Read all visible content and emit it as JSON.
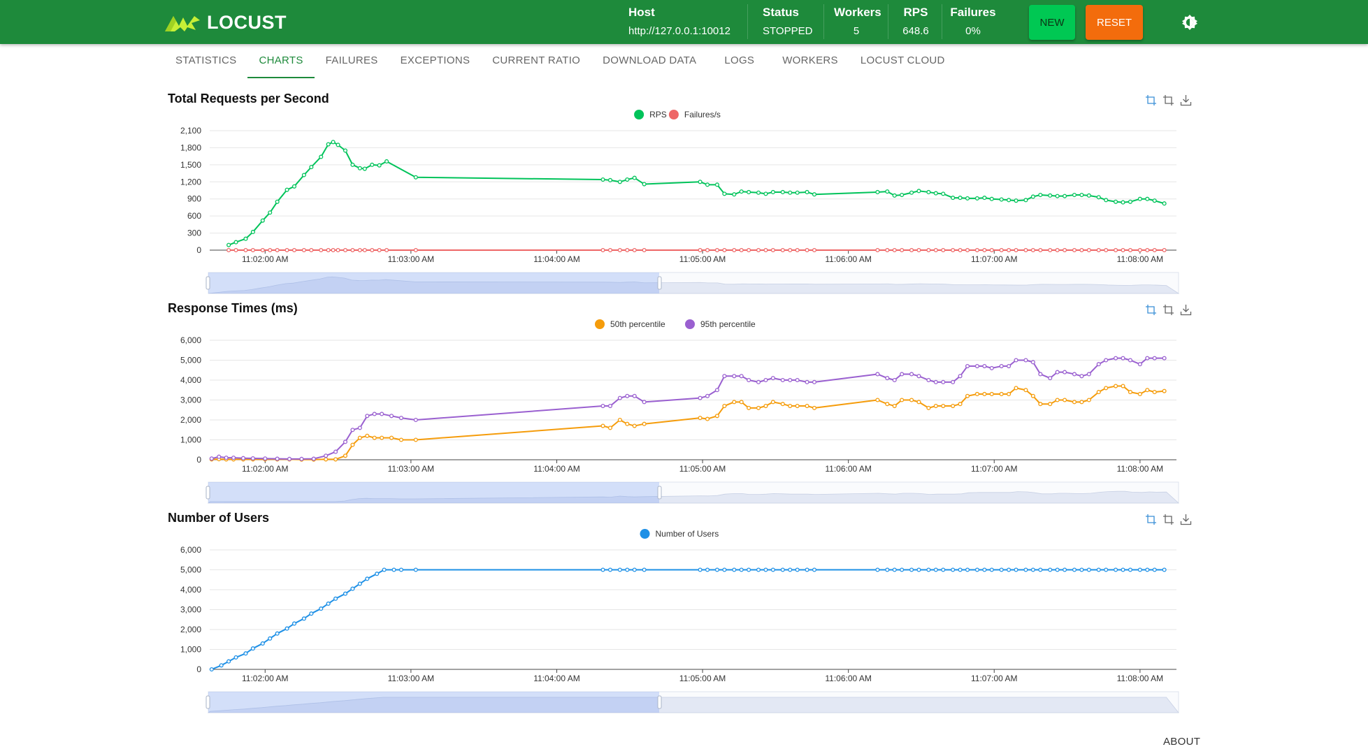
{
  "header": {
    "logo_text": "LOCUST",
    "host_label": "Host",
    "host_value": "http://127.0.0.1:10012",
    "status_label": "Status",
    "status_value": "STOPPED",
    "workers_label": "Workers",
    "workers_value": "5",
    "rps_label": "RPS",
    "rps_value": "648.6",
    "failures_label": "Failures",
    "failures_value": "0%",
    "new_label": "NEW",
    "reset_label": "RESET",
    "theme_icon": "brightness-icon",
    "colors": {
      "bar": "#1e8a3b",
      "new": "#00c853",
      "reset": "#f36c0c"
    }
  },
  "tabs": [
    {
      "label": "STATISTICS"
    },
    {
      "label": "CHARTS",
      "active": true
    },
    {
      "label": "FAILURES"
    },
    {
      "label": "EXCEPTIONS"
    },
    {
      "label": "CURRENT RATIO"
    },
    {
      "label": "DOWNLOAD DATA"
    },
    {
      "label": "LOGS"
    },
    {
      "label": "WORKERS"
    },
    {
      "label": "LOCUST CLOUD"
    }
  ],
  "footer": {
    "about_label": "ABOUT"
  },
  "chart_data": [
    {
      "type": "line",
      "title": "Total Requests per Second",
      "x": [
        "11:01:45 AM",
        "11:01:48 AM",
        "11:01:52 AM",
        "11:01:55 AM",
        "11:01:59 AM",
        "11:02:02 AM",
        "11:02:05 AM",
        "11:02:09 AM",
        "11:02:12 AM",
        "11:02:16 AM",
        "11:02:19 AM",
        "11:02:23 AM",
        "11:02:26 AM",
        "11:02:28 AM",
        "11:02:30 AM",
        "11:02:33 AM",
        "11:02:36 AM",
        "11:02:39 AM",
        "11:02:41 AM",
        "11:02:44 AM",
        "11:02:47 AM",
        "11:02:50 AM",
        "11:03:02 AM",
        "11:04:19 AM",
        "11:04:22 AM",
        "11:04:26 AM",
        "11:04:29 AM",
        "11:04:32 AM",
        "11:04:36 AM",
        "11:04:59 AM",
        "11:05:02 AM",
        "11:05:06 AM",
        "11:05:09 AM",
        "11:05:13 AM",
        "11:05:16 AM",
        "11:05:19 AM",
        "11:05:23 AM",
        "11:05:26 AM",
        "11:05:29 AM",
        "11:05:33 AM",
        "11:05:36 AM",
        "11:05:39 AM",
        "11:05:43 AM",
        "11:05:46 AM",
        "11:06:12 AM",
        "11:06:16 AM",
        "11:06:19 AM",
        "11:06:22 AM",
        "11:06:26 AM",
        "11:06:29 AM",
        "11:06:33 AM",
        "11:06:36 AM",
        "11:06:39 AM",
        "11:06:43 AM",
        "11:06:46 AM",
        "11:06:49 AM",
        "11:06:53 AM",
        "11:06:56 AM",
        "11:06:59 AM",
        "11:07:03 AM",
        "11:07:06 AM",
        "11:07:09 AM",
        "11:07:13 AM",
        "11:07:16 AM",
        "11:07:19 AM",
        "11:07:23 AM",
        "11:07:26 AM",
        "11:07:29 AM",
        "11:07:33 AM",
        "11:07:36 AM",
        "11:07:39 AM",
        "11:07:43 AM",
        "11:07:46 AM",
        "11:07:50 AM",
        "11:07:53 AM",
        "11:07:56 AM",
        "11:08:00 AM",
        "11:08:03 AM",
        "11:08:06 AM",
        "11:08:10 AM"
      ],
      "x_range_minutes": [
        1.62,
        8.25
      ],
      "series": [
        {
          "name": "RPS",
          "color": "#00c35a",
          "values": [
            90,
            140,
            200,
            320,
            520,
            660,
            850,
            1060,
            1120,
            1320,
            1460,
            1640,
            1860,
            1900,
            1850,
            1750,
            1500,
            1440,
            1430,
            1500,
            1490,
            1560,
            1280,
            1240,
            1230,
            1200,
            1240,
            1270,
            1160,
            1200,
            1150,
            1150,
            990,
            980,
            1030,
            1020,
            1010,
            990,
            1020,
            1020,
            1010,
            1010,
            1020,
            980,
            1020,
            1030,
            960,
            970,
            1010,
            1040,
            1020,
            1000,
            990,
            920,
            920,
            910,
            910,
            920,
            900,
            890,
            880,
            870,
            880,
            940,
            970,
            960,
            950,
            950,
            970,
            970,
            960,
            930,
            880,
            850,
            840,
            850,
            900,
            900,
            870,
            820
          ]
        },
        {
          "name": "Failures/s",
          "color": "#ee6666",
          "values": [
            0,
            0,
            0,
            0,
            0,
            0,
            0,
            0,
            0,
            0,
            0,
            0,
            0,
            0,
            0,
            0,
            0,
            0,
            0,
            0,
            0,
            0,
            0,
            0,
            0,
            0,
            0,
            0,
            0,
            0,
            0,
            0,
            0,
            0,
            0,
            0,
            0,
            0,
            0,
            0,
            0,
            0,
            0,
            0,
            0,
            0,
            0,
            0,
            0,
            0,
            0,
            0,
            0,
            0,
            0,
            0,
            0,
            0,
            0,
            0,
            0,
            0,
            0,
            0,
            0,
            0,
            0,
            0,
            0,
            0,
            0,
            0,
            0,
            0,
            0,
            0,
            0,
            0,
            0,
            0
          ]
        }
      ],
      "ylim": [
        0,
        2100
      ],
      "yticks": [
        "0",
        "300",
        "600",
        "900",
        "1,200",
        "1,500",
        "1,800",
        "2,100"
      ],
      "xticks": [
        "11:02:00 AM",
        "11:03:00 AM",
        "11:04:00 AM",
        "11:05:00 AM",
        "11:06:00 AM",
        "11:07:00 AM",
        "11:08:00 AM"
      ],
      "legend": "top-center",
      "grid": true,
      "datazoom": true
    },
    {
      "type": "line",
      "title": "Response Times (ms)",
      "x": [
        "11:01:38 AM",
        "11:01:41 AM",
        "11:01:44 AM",
        "11:01:47 AM",
        "11:01:51 AM",
        "11:01:55 AM",
        "11:02:00 AM",
        "11:02:05 AM",
        "11:02:10 AM",
        "11:02:15 AM",
        "11:02:20 AM",
        "11:02:25 AM",
        "11:02:29 AM",
        "11:02:33 AM",
        "11:02:36 AM",
        "11:02:39 AM",
        "11:02:42 AM",
        "11:02:45 AM",
        "11:02:48 AM",
        "11:02:52 AM",
        "11:02:56 AM",
        "11:03:02 AM",
        "11:04:19 AM",
        "11:04:22 AM",
        "11:04:26 AM",
        "11:04:29 AM",
        "11:04:32 AM",
        "11:04:36 AM",
        "11:04:59 AM",
        "11:05:02 AM",
        "11:05:06 AM",
        "11:05:09 AM",
        "11:05:13 AM",
        "11:05:16 AM",
        "11:05:19 AM",
        "11:05:23 AM",
        "11:05:26 AM",
        "11:05:29 AM",
        "11:05:33 AM",
        "11:05:36 AM",
        "11:05:39 AM",
        "11:05:43 AM",
        "11:05:46 AM",
        "11:06:12 AM",
        "11:06:16 AM",
        "11:06:19 AM",
        "11:06:22 AM",
        "11:06:26 AM",
        "11:06:29 AM",
        "11:06:33 AM",
        "11:06:36 AM",
        "11:06:39 AM",
        "11:06:43 AM",
        "11:06:46 AM",
        "11:06:49 AM",
        "11:06:53 AM",
        "11:06:56 AM",
        "11:06:59 AM",
        "11:07:03 AM",
        "11:07:06 AM",
        "11:07:09 AM",
        "11:07:13 AM",
        "11:07:16 AM",
        "11:07:19 AM",
        "11:07:23 AM",
        "11:07:26 AM",
        "11:07:29 AM",
        "11:07:33 AM",
        "11:07:36 AM",
        "11:07:39 AM",
        "11:07:43 AM",
        "11:07:46 AM",
        "11:07:50 AM",
        "11:07:53 AM",
        "11:07:56 AM",
        "11:08:00 AM",
        "11:08:03 AM",
        "11:08:06 AM",
        "11:08:10 AM"
      ],
      "x_range_minutes": [
        1.62,
        8.25
      ],
      "series": [
        {
          "name": "50th percentile",
          "color": "#f59c0b",
          "values": [
            20,
            30,
            20,
            20,
            20,
            20,
            20,
            20,
            20,
            10,
            10,
            20,
            20,
            200,
            750,
            1100,
            1200,
            1100,
            1100,
            1100,
            1000,
            1000,
            1700,
            1600,
            2000,
            1800,
            1700,
            1800,
            2100,
            2050,
            2200,
            2700,
            2900,
            2900,
            2600,
            2600,
            2700,
            2900,
            2800,
            2700,
            2700,
            2700,
            2600,
            3000,
            2800,
            2700,
            3000,
            3000,
            2900,
            2600,
            2700,
            2700,
            2700,
            2800,
            3200,
            3300,
            3300,
            3300,
            3300,
            3300,
            3600,
            3500,
            3200,
            2800,
            2800,
            3000,
            3000,
            2900,
            2900,
            3000,
            3400,
            3600,
            3700,
            3700,
            3400,
            3300,
            3500,
            3400,
            3450
          ]
        },
        {
          "name": "95th percentile",
          "color": "#9a60d0",
          "values": [
            60,
            150,
            100,
            100,
            80,
            70,
            60,
            50,
            40,
            40,
            50,
            200,
            400,
            900,
            1500,
            1600,
            2200,
            2300,
            2300,
            2200,
            2100,
            2000,
            2700,
            2700,
            3100,
            3200,
            3200,
            2900,
            3100,
            3200,
            3500,
            4200,
            4200,
            4200,
            4000,
            3900,
            4000,
            4100,
            4000,
            4000,
            4000,
            3900,
            3900,
            4300,
            4100,
            4000,
            4300,
            4300,
            4200,
            4000,
            3900,
            3900,
            3900,
            4200,
            4700,
            4700,
            4700,
            4600,
            4700,
            4700,
            5000,
            5000,
            4900,
            4300,
            4100,
            4400,
            4400,
            4300,
            4200,
            4300,
            4800,
            5000,
            5100,
            5100,
            5000,
            4800,
            5100,
            5100,
            5100
          ]
        }
      ],
      "ylim": [
        0,
        6000
      ],
      "yticks": [
        "0",
        "1,000",
        "2,000",
        "3,000",
        "4,000",
        "5,000",
        "6,000"
      ],
      "xticks": [
        "11:02:00 AM",
        "11:03:00 AM",
        "11:04:00 AM",
        "11:05:00 AM",
        "11:06:00 AM",
        "11:07:00 AM",
        "11:08:00 AM"
      ],
      "legend": "top-center",
      "grid": true,
      "datazoom": true
    },
    {
      "type": "line",
      "title": "Number of Users",
      "x": [
        "11:01:38 AM",
        "11:01:42 AM",
        "11:01:45 AM",
        "11:01:48 AM",
        "11:01:52 AM",
        "11:01:55 AM",
        "11:01:59 AM",
        "11:02:02 AM",
        "11:02:05 AM",
        "11:02:09 AM",
        "11:02:12 AM",
        "11:02:16 AM",
        "11:02:19 AM",
        "11:02:23 AM",
        "11:02:26 AM",
        "11:02:29 AM",
        "11:02:33 AM",
        "11:02:36 AM",
        "11:02:39 AM",
        "11:02:42 AM",
        "11:02:46 AM",
        "11:02:49 AM",
        "11:02:53 AM",
        "11:02:56 AM",
        "11:03:02 AM",
        "11:04:19 AM",
        "11:04:22 AM",
        "11:04:26 AM",
        "11:04:29 AM",
        "11:04:32 AM",
        "11:04:36 AM",
        "11:04:59 AM",
        "11:05:02 AM",
        "11:05:06 AM",
        "11:05:09 AM",
        "11:05:13 AM",
        "11:05:16 AM",
        "11:05:19 AM",
        "11:05:23 AM",
        "11:05:26 AM",
        "11:05:29 AM",
        "11:05:33 AM",
        "11:05:36 AM",
        "11:05:39 AM",
        "11:05:43 AM",
        "11:05:46 AM",
        "11:06:12 AM",
        "11:06:16 AM",
        "11:06:19 AM",
        "11:06:22 AM",
        "11:06:26 AM",
        "11:06:29 AM",
        "11:06:33 AM",
        "11:06:36 AM",
        "11:06:39 AM",
        "11:06:43 AM",
        "11:06:46 AM",
        "11:06:49 AM",
        "11:06:53 AM",
        "11:06:56 AM",
        "11:06:59 AM",
        "11:07:03 AM",
        "11:07:06 AM",
        "11:07:09 AM",
        "11:07:13 AM",
        "11:07:16 AM",
        "11:07:19 AM",
        "11:07:23 AM",
        "11:07:26 AM",
        "11:07:29 AM",
        "11:07:33 AM",
        "11:07:36 AM",
        "11:07:39 AM",
        "11:07:43 AM",
        "11:07:46 AM",
        "11:07:50 AM",
        "11:07:53 AM",
        "11:07:56 AM",
        "11:08:00 AM",
        "11:08:03 AM",
        "11:08:06 AM",
        "11:08:10 AM"
      ],
      "x_range_minutes": [
        1.62,
        8.25
      ],
      "series": [
        {
          "name": "Number of Users",
          "color": "#1e90e6",
          "values": [
            0,
            200,
            400,
            600,
            800,
            1050,
            1300,
            1550,
            1800,
            2050,
            2300,
            2550,
            2800,
            3050,
            3300,
            3550,
            3800,
            4050,
            4300,
            4550,
            4800,
            5000,
            5000,
            5000,
            5000,
            5000,
            5000,
            5000,
            5000,
            5000,
            5000,
            5000,
            5000,
            5000,
            5000,
            5000,
            5000,
            5000,
            5000,
            5000,
            5000,
            5000,
            5000,
            5000,
            5000,
            5000,
            5000,
            5000,
            5000,
            5000,
            5000,
            5000,
            5000,
            5000,
            5000,
            5000,
            5000,
            5000,
            5000,
            5000,
            5000,
            5000,
            5000,
            5000,
            5000,
            5000,
            5000,
            5000,
            5000,
            5000,
            5000,
            5000,
            5000,
            5000,
            5000,
            5000,
            5000,
            5000,
            5000,
            5000,
            5000,
            5000
          ]
        }
      ],
      "ylim": [
        0,
        6000
      ],
      "yticks": [
        "0",
        "1,000",
        "2,000",
        "3,000",
        "4,000",
        "5,000",
        "6,000"
      ],
      "xticks": [
        "11:02:00 AM",
        "11:03:00 AM",
        "11:04:00 AM",
        "11:05:00 AM",
        "11:06:00 AM",
        "11:07:00 AM",
        "11:08:00 AM"
      ],
      "legend": "top-center",
      "grid": true,
      "datazoom": true
    }
  ]
}
